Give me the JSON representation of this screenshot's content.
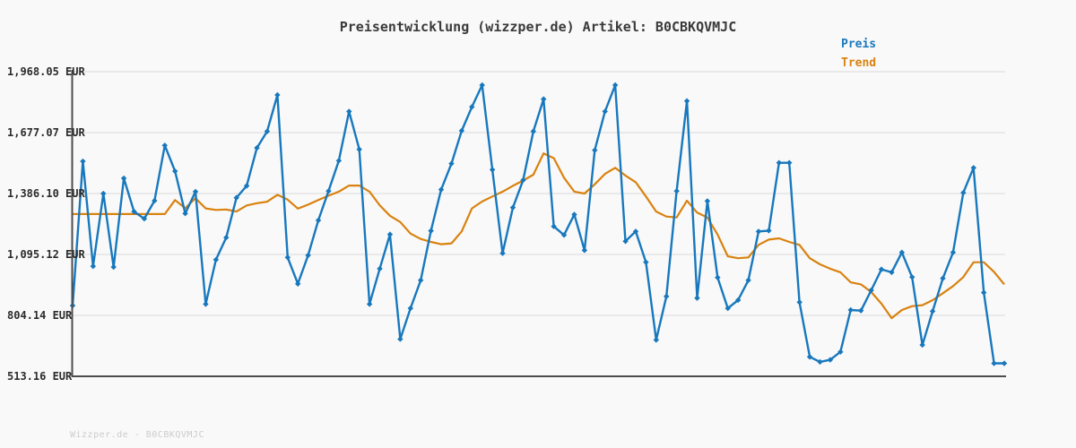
{
  "title": "Preisentwicklung (wizzper.de) Artikel: B0CBKQVMJC",
  "footer": {
    "text": "Wizzper.de - B0CBKQVMJC"
  },
  "chart_data": {
    "type": "line",
    "title": "Preisentwicklung (wizzper.de) Artikel: B0CBKQVMJC",
    "currency": "EUR",
    "grid": "horizontal",
    "legend_position": "top-right",
    "x_axis": {
      "tick_labels_visible": false,
      "num_points": 92
    },
    "yticks": [
      1968.05,
      1677.07,
      1386.1,
      1095.12,
      804.14,
      513.16
    ],
    "ytick_labels": [
      "1,968.05 EUR",
      "1,677.07 EUR",
      "1,386.10 EUR",
      "1,095.12 EUR",
      "804.14 EUR",
      "513.16 EUR"
    ],
    "series": [
      {
        "name": "Preis",
        "color": "#1878bd",
        "marker": "diamond",
        "values": [
          851,
          1540,
          1039,
          1386,
          1035,
          1459,
          1300,
          1266,
          1352,
          1616,
          1493,
          1291,
          1395,
          858,
          1070,
          1176,
          1366,
          1423,
          1604,
          1683,
          1857,
          1081,
          955,
          1091,
          1258,
          1398,
          1543,
          1778,
          1597,
          858,
          1027,
          1191,
          691,
          838,
          972,
          1208,
          1405,
          1529,
          1686,
          1800,
          1904,
          1500,
          1101,
          1319,
          1450,
          1683,
          1837,
          1229,
          1188,
          1286,
          1115,
          1593,
          1778,
          1904,
          1158,
          1205,
          1058,
          687,
          895,
          1398,
          1828,
          887,
          1350,
          985,
          838,
          877,
          972,
          1205,
          1209,
          1533,
          1533,
          867,
          606,
          582,
          592,
          630,
          830,
          827,
          924,
          1024,
          1010,
          1105,
          987,
          663,
          824,
          981,
          1105,
          1390,
          1509,
          913,
          575,
          575
        ]
      },
      {
        "name": "Trend",
        "color": "#d9820f",
        "marker": "none",
        "values": [
          1288,
          1288,
          1288,
          1288,
          1288,
          1288,
          1288,
          1288,
          1288,
          1288,
          1355,
          1316,
          1364,
          1315,
          1308,
          1310,
          1300,
          1329,
          1340,
          1347,
          1380,
          1357,
          1314,
          1333,
          1355,
          1376,
          1395,
          1424,
          1424,
          1395,
          1330,
          1280,
          1250,
          1195,
          1169,
          1155,
          1144,
          1148,
          1205,
          1315,
          1348,
          1372,
          1395,
          1423,
          1448,
          1476,
          1578,
          1555,
          1462,
          1395,
          1386,
          1430,
          1480,
          1509,
          1472,
          1440,
          1372,
          1300,
          1276,
          1272,
          1352,
          1295,
          1272,
          1190,
          1086,
          1077,
          1081,
          1141,
          1166,
          1172,
          1155,
          1141,
          1077,
          1048,
          1027,
          1010,
          962,
          952,
          916,
          860,
          791,
          830,
          848,
          853,
          877,
          910,
          944,
          987,
          1058,
          1058,
          1012,
          952
        ]
      }
    ]
  }
}
